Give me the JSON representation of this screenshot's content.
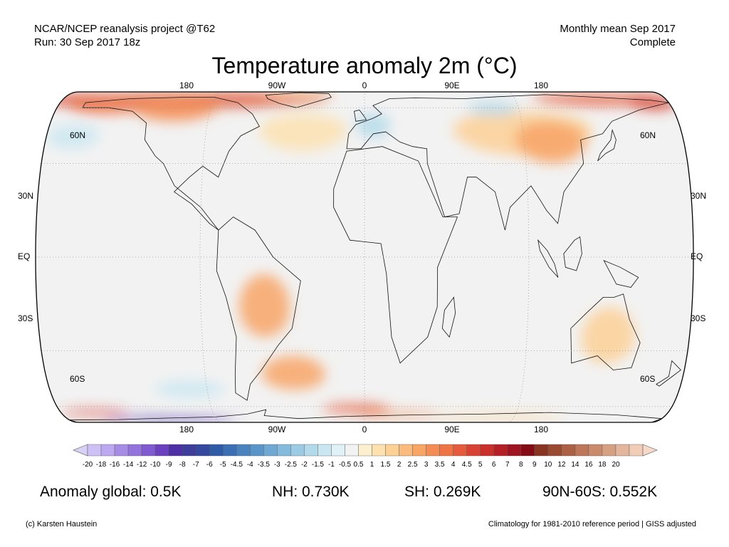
{
  "header": {
    "left_line1": "NCAR/NCEP reanalysis project @T62",
    "left_line2": "Run: 30 Sep 2017 18z",
    "right_line1": "Monthly mean Sep 2017",
    "right_line2": "Complete"
  },
  "title": "Temperature anomaly 2m (°C)",
  "axes": {
    "lon_top": [
      "180",
      "90W",
      "0",
      "90E",
      "180"
    ],
    "lon_bottom": [
      "180",
      "90W",
      "0",
      "90E",
      "180"
    ],
    "lat_left": [
      "60N",
      "30N",
      "EQ",
      "30S",
      "60S"
    ],
    "lat_right": [
      "60N",
      "30N",
      "EQ",
      "30S",
      "60S"
    ]
  },
  "colorbar": {
    "labels": [
      "-20",
      "-18",
      "-16",
      "-14",
      "-12",
      "-10",
      "-9",
      "-8",
      "-7",
      "-6",
      "-5",
      "-4.5",
      "-4",
      "-3.5",
      "-3",
      "-2.5",
      "-2",
      "-1.5",
      "-1",
      "-0.5",
      "0.5",
      "1",
      "1.5",
      "2",
      "2.5",
      "3",
      "3.5",
      "4",
      "4.5",
      "5",
      "6",
      "7",
      "8",
      "9",
      "10",
      "12",
      "14",
      "16",
      "18",
      "20"
    ],
    "colors": [
      "#cdc0f5",
      "#bca8f0",
      "#a78ce6",
      "#9473dd",
      "#7f5ad0",
      "#6b41c0",
      "#4f2fa6",
      "#3d3d9c",
      "#34489f",
      "#2f5aa8",
      "#3b6eb5",
      "#4a82c0",
      "#5a95ca",
      "#6ea8d3",
      "#84badc",
      "#9bcbe4",
      "#b3daeb",
      "#cae7f1",
      "#e0f1f7",
      "#f2f2f2",
      "#fdf0cf",
      "#fde2b0",
      "#fdd096",
      "#fbbb7d",
      "#f8a566",
      "#f48d55",
      "#ee7446",
      "#e55b3b",
      "#d84233",
      "#c9302c",
      "#b52027",
      "#9e1420",
      "#840c17",
      "#8a3524",
      "#9b4a32",
      "#ad6144",
      "#bd7658",
      "#ca8b6c",
      "#d6a083",
      "#e3b69d",
      "#f1cdb7"
    ],
    "end_low": "#d9cff7",
    "end_high": "#f6d9c9"
  },
  "stats": {
    "global": "Anomaly global: 0.5K",
    "nh": "NH: 0.730K",
    "sh": "SH: 0.269K",
    "arctic": "90N-60S: 0.552K"
  },
  "footer": {
    "credit": "(c) Karsten Haustein",
    "note": "Climatology for 1981-2010 reference period | GISS adjusted"
  },
  "map": {
    "ocean_color": "#f2f2f2",
    "anomalies": [
      {
        "name": "arctic-canada-warm",
        "lon": -90,
        "lat": 72,
        "rlon": 70,
        "rlat": 12,
        "color": "#e05a3a"
      },
      {
        "name": "bering-warm",
        "lon": -170,
        "lat": 70,
        "rlon": 25,
        "rlat": 8,
        "color": "#d84233"
      },
      {
        "name": "alaska-warm",
        "lon": -150,
        "lat": 63,
        "rlon": 25,
        "rlat": 8,
        "color": "#ee7446"
      },
      {
        "name": "canada-warm",
        "lon": -110,
        "lat": 60,
        "rlon": 25,
        "rlat": 10,
        "color": "#f48d55"
      },
      {
        "name": "greenland-warm",
        "lon": -40,
        "lat": 78,
        "rlon": 22,
        "rlat": 6,
        "color": "#fbbb7d"
      },
      {
        "name": "siberia-warm",
        "lon": 140,
        "lat": 70,
        "rlon": 40,
        "rlat": 8,
        "color": "#e55b3b"
      },
      {
        "name": "siberia-east-warm",
        "lon": 170,
        "lat": 66,
        "rlon": 15,
        "rlat": 8,
        "color": "#d84233"
      },
      {
        "name": "asia-warm",
        "lon": 90,
        "lat": 45,
        "rlon": 40,
        "rlat": 12,
        "color": "#fdd096"
      },
      {
        "name": "mongolia-warm",
        "lon": 105,
        "lat": 40,
        "rlon": 20,
        "rlat": 10,
        "color": "#f8a566"
      },
      {
        "name": "russia-cold",
        "lon": 75,
        "lat": 60,
        "rlon": 15,
        "rlat": 6,
        "color": "#b3daeb"
      },
      {
        "name": "europe-cold",
        "lon": 5,
        "lat": 48,
        "rlon": 10,
        "rlat": 7,
        "color": "#b3daeb"
      },
      {
        "name": "north-pacific-cold",
        "lon": -165,
        "lat": 42,
        "rlon": 15,
        "rlat": 6,
        "color": "#cae7f1"
      },
      {
        "name": "north-atlantic-warm",
        "lon": -35,
        "lat": 45,
        "rlon": 25,
        "rlat": 10,
        "color": "#fde2b0"
      },
      {
        "name": "south-america-warm",
        "lon": -55,
        "lat": -15,
        "rlon": 14,
        "rlat": 10,
        "color": "#f8a566"
      },
      {
        "name": "south-atlantic-warm",
        "lon": -40,
        "lat": -40,
        "rlon": 18,
        "rlat": 8,
        "color": "#f8a566"
      },
      {
        "name": "australia-warm",
        "lon": 135,
        "lat": -25,
        "rlon": 15,
        "rlat": 10,
        "color": "#fdd096"
      },
      {
        "name": "southern-ocean-cold",
        "lon": -100,
        "lat": -48,
        "rlon": 20,
        "rlat": 5,
        "color": "#cae7f1"
      },
      {
        "name": "ross-sea-warm",
        "lon": -160,
        "lat": -66,
        "rlon": 20,
        "rlat": 3,
        "color": "#d84233"
      },
      {
        "name": "weddell-warm",
        "lon": -5,
        "lat": -62,
        "rlon": 20,
        "rlat": 4,
        "color": "#e55b3b"
      },
      {
        "name": "south-indian-warm",
        "lon": 20,
        "lat": -68,
        "rlon": 25,
        "rlat": 3,
        "color": "#f48d55"
      },
      {
        "name": "west-antarctica-cold",
        "lon": -120,
        "lat": -78,
        "rlon": 40,
        "rlat": 6,
        "color": "#4f2fa6"
      },
      {
        "name": "antarctica-cold-core",
        "lon": -100,
        "lat": -82,
        "rlon": 25,
        "rlat": 4,
        "color": "#7f5ad0"
      },
      {
        "name": "east-antarctica-warm",
        "lon": 80,
        "lat": -72,
        "rlon": 40,
        "rlat": 4,
        "color": "#fdd096"
      }
    ],
    "continents": [
      {
        "name": "north-america",
        "points": [
          [
            -165,
            65
          ],
          [
            -140,
            70
          ],
          [
            -110,
            72
          ],
          [
            -90,
            72
          ],
          [
            -75,
            65
          ],
          [
            -65,
            55
          ],
          [
            -60,
            47
          ],
          [
            -70,
            42
          ],
          [
            -76,
            35
          ],
          [
            -81,
            25
          ],
          [
            -90,
            29
          ],
          [
            -97,
            25
          ],
          [
            -105,
            20
          ],
          [
            -95,
            16
          ],
          [
            -85,
            10
          ],
          [
            -80,
            8
          ],
          [
            -90,
            15
          ],
          [
            -105,
            22
          ],
          [
            -112,
            30
          ],
          [
            -117,
            33
          ],
          [
            -124,
            40
          ],
          [
            -125,
            49
          ],
          [
            -135,
            57
          ],
          [
            -150,
            60
          ],
          [
            -165,
            60
          ],
          [
            -165,
            65
          ]
        ]
      },
      {
        "name": "greenland",
        "points": [
          [
            -60,
            76
          ],
          [
            -40,
            83
          ],
          [
            -22,
            80
          ],
          [
            -20,
            72
          ],
          [
            -40,
            60
          ],
          [
            -50,
            64
          ],
          [
            -58,
            70
          ],
          [
            -60,
            76
          ]
        ]
      },
      {
        "name": "south-america",
        "points": [
          [
            -80,
            8
          ],
          [
            -72,
            12
          ],
          [
            -60,
            8
          ],
          [
            -50,
            0
          ],
          [
            -35,
            -7
          ],
          [
            -40,
            -22
          ],
          [
            -48,
            -28
          ],
          [
            -58,
            -38
          ],
          [
            -65,
            -45
          ],
          [
            -68,
            -55
          ],
          [
            -74,
            -50
          ],
          [
            -73,
            -40
          ],
          [
            -71,
            -25
          ],
          [
            -76,
            -12
          ],
          [
            -81,
            -4
          ],
          [
            -80,
            8
          ]
        ]
      },
      {
        "name": "africa",
        "points": [
          [
            -17,
            21
          ],
          [
            -10,
            35
          ],
          [
            10,
            37
          ],
          [
            30,
            31
          ],
          [
            43,
            12
          ],
          [
            51,
            12
          ],
          [
            40,
            -3
          ],
          [
            40,
            -15
          ],
          [
            35,
            -25
          ],
          [
            20,
            -35
          ],
          [
            15,
            -25
          ],
          [
            12,
            -5
          ],
          [
            9,
            4
          ],
          [
            -8,
            5
          ],
          [
            -17,
            15
          ],
          [
            -17,
            21
          ]
        ]
      },
      {
        "name": "eurasia",
        "points": [
          [
            -10,
            36
          ],
          [
            -9,
            43
          ],
          [
            -5,
            48
          ],
          [
            5,
            52
          ],
          [
            10,
            55
          ],
          [
            5,
            62
          ],
          [
            15,
            70
          ],
          [
            30,
            71
          ],
          [
            60,
            70
          ],
          [
            80,
            73
          ],
          [
            110,
            77
          ],
          [
            140,
            72
          ],
          [
            170,
            68
          ],
          [
            180,
            65
          ],
          [
            160,
            58
          ],
          [
            142,
            50
          ],
          [
            135,
            43
          ],
          [
            122,
            40
          ],
          [
            122,
            30
          ],
          [
            110,
            20
          ],
          [
            106,
            10
          ],
          [
            100,
            14
          ],
          [
            97,
            17
          ],
          [
            92,
            22
          ],
          [
            80,
            15
          ],
          [
            77,
            8
          ],
          [
            72,
            20
          ],
          [
            62,
            25
          ],
          [
            57,
            25
          ],
          [
            52,
            13
          ],
          [
            44,
            12
          ],
          [
            35,
            30
          ],
          [
            35,
            36
          ],
          [
            27,
            37
          ],
          [
            20,
            39
          ],
          [
            12,
            44
          ],
          [
            5,
            43
          ],
          [
            -2,
            36
          ],
          [
            -10,
            36
          ]
        ]
      },
      {
        "name": "australia",
        "points": [
          [
            114,
            -22
          ],
          [
            122,
            -17
          ],
          [
            131,
            -12
          ],
          [
            137,
            -12
          ],
          [
            142,
            -11
          ],
          [
            146,
            -19
          ],
          [
            153,
            -27
          ],
          [
            150,
            -37
          ],
          [
            140,
            -38
          ],
          [
            130,
            -32
          ],
          [
            116,
            -35
          ],
          [
            114,
            -22
          ]
        ]
      },
      {
        "name": "antarctica",
        "points": [
          [
            -180,
            -78
          ],
          [
            -150,
            -77
          ],
          [
            -120,
            -74
          ],
          [
            -90,
            -72
          ],
          [
            -70,
            -68
          ],
          [
            -58,
            -63
          ],
          [
            -60,
            -70
          ],
          [
            -40,
            -75
          ],
          [
            -10,
            -71
          ],
          [
            30,
            -69
          ],
          [
            70,
            -68
          ],
          [
            110,
            -66
          ],
          [
            150,
            -69
          ],
          [
            180,
            -75
          ],
          [
            180,
            -89
          ],
          [
            -180,
            -89
          ],
          [
            -180,
            -78
          ]
        ]
      },
      {
        "name": "borneo",
        "points": [
          [
            109,
            1
          ],
          [
            115,
            5
          ],
          [
            118,
            6
          ],
          [
            119,
            1
          ],
          [
            116,
            -4
          ],
          [
            110,
            -3
          ],
          [
            109,
            1
          ]
        ]
      },
      {
        "name": "sumatra",
        "points": [
          [
            95,
            5
          ],
          [
            100,
            2
          ],
          [
            104,
            -2
          ],
          [
            106,
            -6
          ],
          [
            101,
            -3
          ],
          [
            96,
            2
          ],
          [
            95,
            5
          ]
        ]
      },
      {
        "name": "new-guinea",
        "points": [
          [
            131,
            -1
          ],
          [
            140,
            -3
          ],
          [
            150,
            -6
          ],
          [
            146,
            -9
          ],
          [
            138,
            -8
          ],
          [
            131,
            -1
          ]
        ]
      },
      {
        "name": "japan",
        "points": [
          [
            130,
            31
          ],
          [
            135,
            34
          ],
          [
            140,
            36
          ],
          [
            142,
            40
          ],
          [
            141,
            45
          ],
          [
            139,
            40
          ],
          [
            132,
            34
          ],
          [
            130,
            31
          ]
        ]
      },
      {
        "name": "madagascar",
        "points": [
          [
            44,
            -16
          ],
          [
            49,
            -12
          ],
          [
            50,
            -17
          ],
          [
            47,
            -25
          ],
          [
            43,
            -22
          ],
          [
            44,
            -16
          ]
        ]
      },
      {
        "name": "great-britain",
        "points": [
          [
            -5,
            50
          ],
          [
            1,
            51
          ],
          [
            0,
            53
          ],
          [
            -3,
            58
          ],
          [
            -6,
            57
          ],
          [
            -5,
            50
          ]
        ]
      },
      {
        "name": "new-zealand",
        "points": [
          [
            172,
            -34
          ],
          [
            178,
            -38
          ],
          [
            174,
            -41
          ],
          [
            168,
            -46
          ],
          [
            166,
            -45
          ],
          [
            172,
            -41
          ],
          [
            172,
            -34
          ]
        ]
      }
    ]
  }
}
